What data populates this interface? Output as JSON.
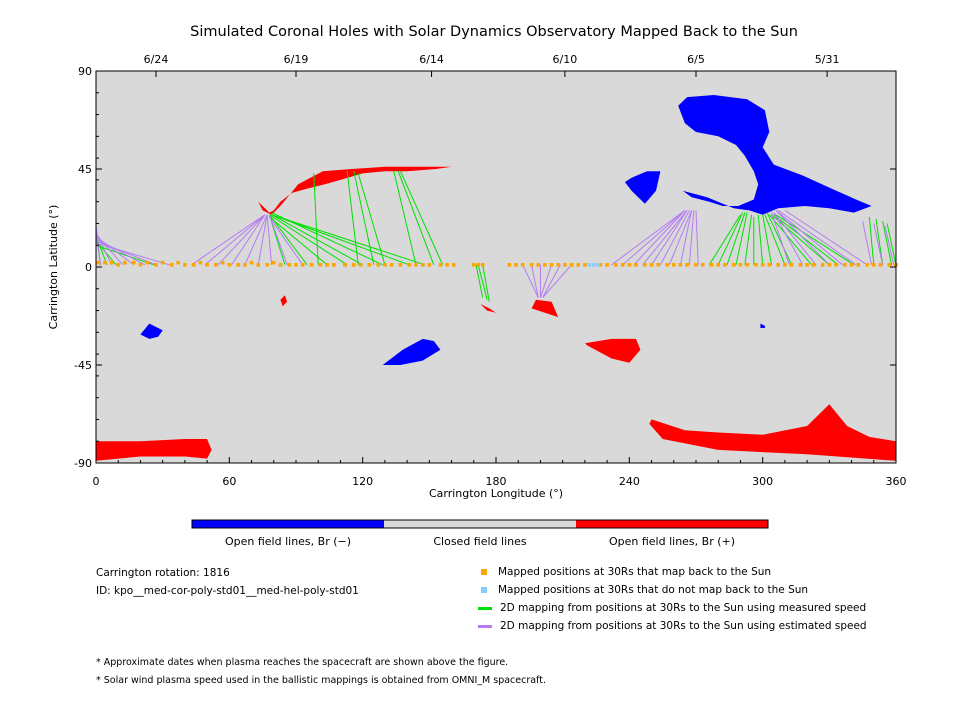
{
  "chart_data": {
    "type": "scatter",
    "title": "Simulated Coronal Holes with Solar Dynamics Observatory Mapped Back to the Sun",
    "xlabel": "Carrington Longitude (°)",
    "ylabel": "Carrington Latitude (°)",
    "xlim": [
      0,
      360
    ],
    "ylim": [
      -90,
      90
    ],
    "xticks": [
      "0",
      "60",
      "120",
      "180",
      "240",
      "300",
      "360"
    ],
    "yticks": [
      "90",
      "45",
      "0",
      "-45",
      "-90"
    ],
    "date_ticks": [
      {
        "lon": 27,
        "label": "6/24"
      },
      {
        "lon": 90,
        "label": "6/19"
      },
      {
        "lon": 151,
        "label": "6/14"
      },
      {
        "lon": 211,
        "label": "6/10"
      },
      {
        "lon": 270,
        "label": "6/5"
      },
      {
        "lon": 329,
        "label": "5/31"
      }
    ],
    "colors": {
      "background": "#d9d9d9",
      "open_negative": "#0000ff",
      "open_positive": "#ff0000",
      "mapped": "#ffa500",
      "not_mapped": "#87cefa",
      "measured": "#00e000",
      "estimated": "#b57cf2"
    },
    "coronal_holes": [
      {
        "polarity": "negative",
        "points": [
          [
            262,
            74
          ],
          [
            266,
            78
          ],
          [
            278,
            79
          ],
          [
            293,
            77
          ],
          [
            301,
            72
          ],
          [
            303,
            62
          ],
          [
            300,
            55
          ],
          [
            305,
            47
          ],
          [
            318,
            42
          ],
          [
            331,
            36
          ],
          [
            342,
            31
          ],
          [
            349,
            28
          ],
          [
            341,
            25
          ],
          [
            330,
            27
          ],
          [
            319,
            28
          ],
          [
            307,
            27
          ],
          [
            300,
            24
          ],
          [
            294,
            26
          ],
          [
            287,
            27
          ],
          [
            275,
            32
          ],
          [
            264,
            35
          ],
          [
            268,
            32
          ],
          [
            276,
            30
          ],
          [
            282,
            28
          ],
          [
            289,
            28
          ],
          [
            296,
            31
          ],
          [
            298,
            38
          ],
          [
            296,
            44
          ],
          [
            292,
            51
          ],
          [
            288,
            56
          ],
          [
            280,
            60
          ],
          [
            270,
            62
          ],
          [
            265,
            66
          ]
        ]
      },
      {
        "polarity": "negative",
        "points": [
          [
            241,
            41
          ],
          [
            248,
            44
          ],
          [
            254,
            44
          ],
          [
            252,
            35
          ],
          [
            247,
            29
          ],
          [
            241,
            35
          ],
          [
            238,
            39
          ]
        ]
      },
      {
        "polarity": "negative",
        "points": [
          [
            155,
            -38
          ],
          [
            152,
            -34
          ],
          [
            147,
            -33
          ],
          [
            138,
            -38
          ],
          [
            129,
            -45
          ],
          [
            137,
            -45
          ],
          [
            147,
            -43
          ]
        ]
      },
      {
        "polarity": "negative",
        "points": [
          [
            24,
            -33
          ],
          [
            28,
            -32
          ],
          [
            30,
            -29
          ],
          [
            24,
            -26
          ],
          [
            20,
            -31
          ]
        ]
      },
      {
        "polarity": "negative",
        "points": [
          [
            299,
            -28
          ],
          [
            301,
            -28
          ],
          [
            301,
            -27
          ],
          [
            299,
            -26
          ]
        ]
      },
      {
        "polarity": "positive",
        "points": [
          [
            73,
            30
          ],
          [
            75,
            26
          ],
          [
            79,
            24
          ],
          [
            83,
            28
          ],
          [
            91,
            38
          ],
          [
            102,
            44
          ],
          [
            115,
            45
          ],
          [
            130,
            46
          ],
          [
            145,
            46
          ],
          [
            160,
            46
          ],
          [
            153,
            45
          ],
          [
            140,
            44
          ],
          [
            130,
            44
          ],
          [
            120,
            43
          ],
          [
            110,
            40
          ],
          [
            103,
            38
          ],
          [
            95,
            36
          ],
          [
            88,
            34
          ],
          [
            83,
            30
          ],
          [
            80,
            26
          ],
          [
            78,
            25
          ],
          [
            76,
            27
          ]
        ]
      },
      {
        "polarity": "positive",
        "points": [
          [
            0,
            -80
          ],
          [
            20,
            -80
          ],
          [
            40,
            -79
          ],
          [
            50,
            -79
          ],
          [
            52,
            -84
          ],
          [
            50,
            -88
          ],
          [
            40,
            -87
          ],
          [
            20,
            -87
          ],
          [
            0,
            -89
          ]
        ]
      },
      {
        "polarity": "positive",
        "points": [
          [
            250,
            -70
          ],
          [
            265,
            -75
          ],
          [
            280,
            -76
          ],
          [
            300,
            -77
          ],
          [
            320,
            -73
          ],
          [
            330,
            -63
          ],
          [
            338,
            -73
          ],
          [
            348,
            -78
          ],
          [
            360,
            -80
          ],
          [
            360,
            -89
          ],
          [
            320,
            -86
          ],
          [
            280,
            -84
          ],
          [
            255,
            -79
          ],
          [
            249,
            -72
          ]
        ]
      },
      {
        "polarity": "positive",
        "points": [
          [
            220,
            -35
          ],
          [
            232,
            -33
          ],
          [
            243,
            -33
          ],
          [
            245,
            -38
          ],
          [
            240,
            -44
          ],
          [
            232,
            -42
          ],
          [
            221,
            -36
          ]
        ]
      },
      {
        "polarity": "positive",
        "points": [
          [
            198,
            -15
          ],
          [
            205,
            -16
          ],
          [
            208,
            -23
          ],
          [
            202,
            -21
          ],
          [
            196,
            -19
          ]
        ]
      },
      {
        "polarity": "positive",
        "points": [
          [
            173,
            -17
          ],
          [
            177,
            -19
          ],
          [
            180,
            -21
          ],
          [
            176,
            -20
          ]
        ]
      },
      {
        "polarity": "positive",
        "points": [
          [
            85,
            -13
          ],
          [
            86,
            -16
          ],
          [
            84,
            -18
          ],
          [
            83,
            -15
          ]
        ]
      }
    ],
    "mapped_points": {
      "lon": [
        1,
        4,
        7,
        10,
        13,
        17,
        20,
        23,
        27,
        30,
        34,
        37,
        40,
        44,
        47,
        50,
        54,
        57,
        60,
        64,
        67,
        70,
        73,
        77,
        80,
        83,
        87,
        90,
        93,
        97,
        101,
        104,
        107,
        112,
        116,
        119,
        123,
        127,
        130,
        133,
        137,
        141,
        144,
        147,
        150,
        155,
        158,
        161,
        170,
        172,
        174,
        186,
        189,
        192,
        196,
        199,
        202,
        205,
        208,
        211,
        214,
        217,
        220,
        227,
        230,
        234,
        237,
        240,
        243,
        247,
        250,
        253,
        257,
        260,
        263,
        266,
        270,
        273,
        277,
        280,
        283,
        287,
        290,
        293,
        297,
        300,
        303,
        307,
        310,
        313,
        317,
        320,
        323,
        327,
        330,
        333,
        337,
        340,
        343,
        347,
        350,
        353,
        357,
        360
      ],
      "lat": [
        2,
        2,
        2,
        1,
        2,
        2,
        1,
        2,
        1,
        2,
        1,
        2,
        1,
        1,
        2,
        1,
        1,
        2,
        1,
        1,
        1,
        2,
        1,
        1,
        2,
        1,
        1,
        1,
        1,
        1,
        1,
        1,
        1,
        1,
        1,
        1,
        1,
        1,
        1,
        1,
        1,
        1,
        1,
        1,
        1,
        1,
        1,
        1,
        1,
        1,
        1,
        1,
        1,
        1,
        1,
        1,
        1,
        1,
        1,
        1,
        1,
        1,
        1,
        1,
        1,
        1,
        1,
        1,
        1,
        1,
        1,
        1,
        1,
        1,
        1,
        1,
        1,
        1,
        1,
        1,
        1,
        1,
        1,
        1,
        1,
        1,
        1,
        1,
        1,
        1,
        1,
        1,
        1,
        1,
        1,
        1,
        1,
        1,
        1,
        1,
        1,
        1,
        1,
        1
      ]
    },
    "unmapped_points": {
      "lon": [
        222,
        224,
        226
      ],
      "lat": [
        1,
        1,
        1
      ]
    },
    "measured_mappings": [
      [
        2,
        1,
        0,
        17
      ],
      [
        5,
        1,
        0,
        14
      ],
      [
        9,
        1,
        0,
        12
      ],
      [
        26,
        1,
        0,
        10
      ],
      [
        85,
        1,
        78,
        24
      ],
      [
        95,
        1,
        78,
        24
      ],
      [
        104,
        1,
        78,
        23
      ],
      [
        113,
        1,
        78,
        24
      ],
      [
        120,
        1,
        79,
        24
      ],
      [
        129,
        1,
        79,
        25
      ],
      [
        141,
        1,
        79,
        24
      ],
      [
        148,
        1,
        79,
        24
      ],
      [
        100,
        1,
        98,
        43
      ],
      [
        118,
        1,
        113,
        44
      ],
      [
        125,
        1,
        116,
        44
      ],
      [
        130,
        1,
        118,
        43
      ],
      [
        144,
        1,
        134,
        44
      ],
      [
        152,
        1,
        136,
        44
      ],
      [
        156,
        1,
        137,
        44
      ],
      [
        171,
        1,
        174,
        -14
      ],
      [
        172,
        1,
        176,
        -15
      ],
      [
        174,
        1,
        177,
        -16
      ],
      [
        276,
        1,
        290,
        24
      ],
      [
        280,
        1,
        291,
        25
      ],
      [
        284,
        1,
        292,
        25
      ],
      [
        288,
        1,
        293,
        25
      ],
      [
        292,
        1,
        295,
        24
      ],
      [
        296,
        1,
        296,
        23
      ],
      [
        300,
        1,
        298,
        24
      ],
      [
        304,
        1,
        300,
        24
      ],
      [
        310,
        1,
        301,
        24
      ],
      [
        313,
        1,
        302,
        25
      ],
      [
        322,
        1,
        303,
        24
      ],
      [
        330,
        1,
        304,
        24
      ],
      [
        334,
        1,
        305,
        24
      ],
      [
        341,
        1,
        306,
        24
      ],
      [
        350,
        1,
        348,
        23
      ],
      [
        354,
        1,
        351,
        22
      ],
      [
        358,
        1,
        354,
        21
      ],
      [
        360,
        1,
        356,
        20
      ]
    ],
    "estimated_mappings": [
      [
        2,
        1,
        0,
        19
      ],
      [
        7,
        1,
        0,
        16
      ],
      [
        12,
        1,
        0,
        15
      ],
      [
        17,
        1,
        0,
        14
      ],
      [
        22,
        1,
        0,
        13
      ],
      [
        27,
        1,
        0,
        12
      ],
      [
        33,
        1,
        0,
        11
      ],
      [
        43,
        1,
        76,
        24
      ],
      [
        49,
        1,
        76,
        24
      ],
      [
        55,
        1,
        76,
        24
      ],
      [
        61,
        1,
        76,
        24
      ],
      [
        67,
        1,
        77,
        24
      ],
      [
        73,
        1,
        77,
        24
      ],
      [
        79,
        1,
        77,
        24
      ],
      [
        86,
        1,
        78,
        24
      ],
      [
        93,
        1,
        78,
        23
      ],
      [
        192,
        1,
        199,
        -14
      ],
      [
        196,
        1,
        199,
        -14
      ],
      [
        200,
        1,
        200,
        -14
      ],
      [
        205,
        1,
        200,
        -14
      ],
      [
        209,
        1,
        201,
        -14
      ],
      [
        214,
        1,
        201,
        -14
      ],
      [
        232,
        1,
        265,
        26
      ],
      [
        237,
        1,
        265,
        26
      ],
      [
        242,
        1,
        265,
        26
      ],
      [
        246,
        1,
        266,
        26
      ],
      [
        250,
        1,
        266,
        26
      ],
      [
        254,
        1,
        267,
        26
      ],
      [
        258,
        1,
        268,
        26
      ],
      [
        263,
        1,
        268,
        26
      ],
      [
        267,
        1,
        269,
        26
      ],
      [
        271,
        1,
        270,
        26
      ],
      [
        312,
        1,
        304,
        25
      ],
      [
        318,
        1,
        305,
        25
      ],
      [
        324,
        1,
        305,
        25
      ],
      [
        330,
        1,
        306,
        26
      ],
      [
        336,
        1,
        306,
        26
      ],
      [
        342,
        1,
        307,
        26
      ],
      [
        347,
        1,
        310,
        26
      ],
      [
        349,
        1,
        345,
        21
      ],
      [
        354,
        1,
        350,
        20
      ],
      [
        359,
        1,
        355,
        19
      ]
    ]
  },
  "colorbar": {
    "negative_label": "Open field lines, Br (−)",
    "closed_label": "Closed field lines",
    "positive_label": "Open field lines, Br (+)"
  },
  "info": {
    "rotation": "Carrington rotation: 1816",
    "id": "ID: kpo__med-cor-poly-std01__med-hel-poly-std01"
  },
  "legend": {
    "mapped": "Mapped positions at 30Rs that map back to the Sun",
    "not_mapped": "Mapped positions at 30Rs that do not map back to the Sun",
    "measured": "2D mapping from positions at 30Rs to the Sun using measured speed",
    "estimated": "2D mapping from positions at 30Rs to the Sun using estimated speed"
  },
  "notes": {
    "note1": "* Approximate dates when plasma reaches the spacecraft are shown above the figure.",
    "note2": "* Solar wind plasma speed used in the ballistic mappings is obtained from OMNI_M spacecraft."
  }
}
